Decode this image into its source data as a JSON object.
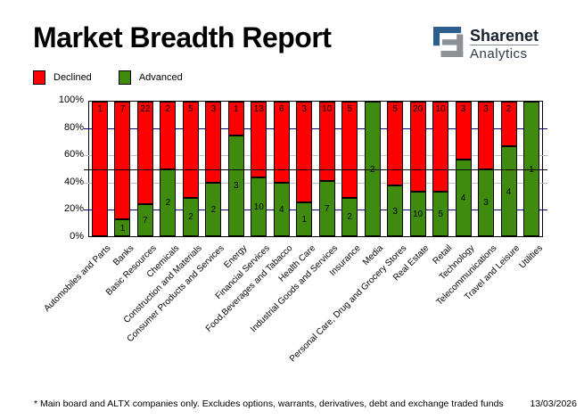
{
  "header": {
    "title": "Market Breadth Report",
    "logo": {
      "line1": "Sharenet",
      "line2": "Analytics"
    }
  },
  "legend": [
    {
      "label": "Declined",
      "color": "#ff0000"
    },
    {
      "label": "Advanced",
      "color": "#3e8b0e"
    }
  ],
  "chart_data": {
    "type": "bar",
    "stacked": true,
    "stacking": "percent",
    "title": "Market Breadth Report",
    "categories": [
      "Automobiles and Parts",
      "Banks",
      "Basic Resources",
      "Chemicals",
      "Construction and Materials",
      "Consumer Products and Services",
      "Energy",
      "Financial Services",
      "Food,Beverages and Tabacco",
      "Health Care",
      "Industrial Goods and Services",
      "Insurance",
      "Media",
      "Personal Care, Drug and Grocery Stores",
      "Real Estate",
      "Retail",
      "Technology",
      "Telecommunications",
      "Travel and Leisure",
      "Utilities"
    ],
    "series": [
      {
        "name": "Declined",
        "color": "#ff0000",
        "position": "top",
        "values": [
          1,
          7,
          22,
          2,
          5,
          3,
          1,
          13,
          6,
          3,
          10,
          5,
          0,
          5,
          20,
          10,
          3,
          3,
          2,
          0
        ]
      },
      {
        "name": "Advanced",
        "color": "#3e8b0e",
        "position": "bottom",
        "values": [
          0,
          1,
          7,
          2,
          2,
          2,
          3,
          10,
          4,
          1,
          7,
          2,
          2,
          3,
          10,
          5,
          4,
          3,
          4,
          1
        ]
      }
    ],
    "ylim": [
      0,
      100
    ],
    "y_axis_ticks": [
      "0%",
      "20%",
      "40%",
      "60%",
      "80%",
      "100%"
    ],
    "gridlines": [
      {
        "percent": 20,
        "color": "#000080",
        "over_bars": false
      },
      {
        "percent": 40,
        "color": "#c0c0c0",
        "over_bars": false
      },
      {
        "percent": 50,
        "color": "#000000",
        "over_bars": true
      },
      {
        "percent": 60,
        "color": "#c0c0c0",
        "over_bars": false
      },
      {
        "percent": 80,
        "color": "#000080",
        "over_bars": false
      }
    ],
    "legend_position": "top-left"
  },
  "footer": {
    "note": "* Main board and ALTX companies only. Excludes options, warrants, derivatives, debt and exchange traded funds",
    "date": "13/03/2026"
  },
  "colors": {
    "declined": "#ff0000",
    "advanced": "#3e8b0e",
    "grid_navy": "#000080",
    "grid_gray": "#c0c0c0",
    "midline": "#000000",
    "logo_blue": "#2d5f8e",
    "logo_gray": "#8e9194"
  }
}
